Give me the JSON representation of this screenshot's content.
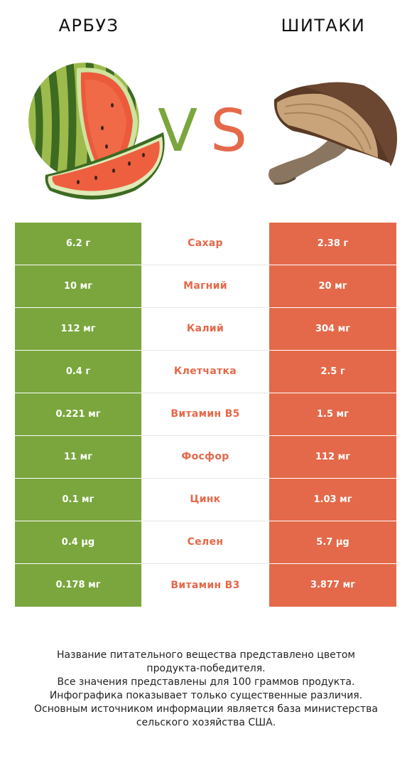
{
  "left_product": {
    "name": "АРБУЗ",
    "image": "watermelon-image",
    "color": "#7aa63d"
  },
  "right_product": {
    "name": "ШИТАКИ",
    "image": "shiitake-mushroom-image",
    "color": "#e4694a"
  },
  "vs": {
    "v": "V",
    "s": "S"
  },
  "rows": [
    {
      "left": "6.2 г",
      "nutrient": "Сахар",
      "right": "2.38 г",
      "winner": "right"
    },
    {
      "left": "10 мг",
      "nutrient": "Магний",
      "right": "20 мг",
      "winner": "right"
    },
    {
      "left": "112 мг",
      "nutrient": "Калий",
      "right": "304 мг",
      "winner": "right"
    },
    {
      "left": "0.4 г",
      "nutrient": "Клетчатка",
      "right": "2.5 г",
      "winner": "right"
    },
    {
      "left": "0.221 мг",
      "nutrient": "Витамин B5",
      "right": "1.5 мг",
      "winner": "right"
    },
    {
      "left": "11 мг",
      "nutrient": "Фосфор",
      "right": "112 мг",
      "winner": "right"
    },
    {
      "left": "0.1 мг",
      "nutrient": "Цинк",
      "right": "1.03 мг",
      "winner": "right"
    },
    {
      "left": "0.4 µg",
      "nutrient": "Селен",
      "right": "5.7 µg",
      "winner": "right"
    },
    {
      "left": "0.178 мг",
      "nutrient": "Витамин B3",
      "right": "3.877 мг",
      "winner": "right"
    }
  ],
  "footnote": [
    "Название питательного вещества представлено цветом",
    "продукта-победителя.",
    "Все значения представлены для 100 граммов продукта.",
    "Инфографика показывает только существенные различия.",
    "Основным источником информации является база министерства",
    "сельского хозяйства США."
  ]
}
